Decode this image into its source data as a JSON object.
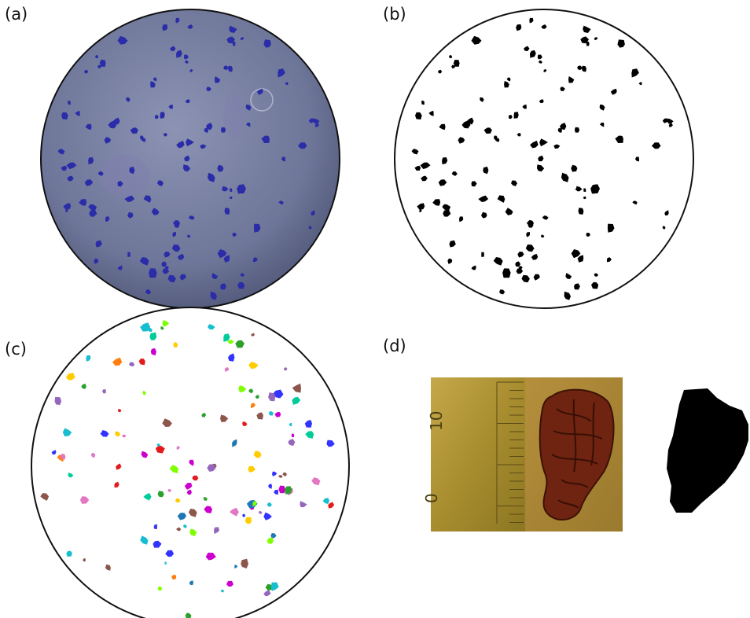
{
  "panels": [
    {
      "label": "(a)",
      "kind": "stained-dish-photo"
    },
    {
      "label": "(b)",
      "kind": "binary-threshold"
    },
    {
      "label": "(c)",
      "kind": "colored-labels"
    },
    {
      "label": "(d)",
      "kind": "single-colony-and-mask"
    }
  ],
  "ruler_text": "0  10",
  "colors": {
    "dish_blue": "#6d7597",
    "colony_blue": "#2a2ca8",
    "colony_black": "#000000",
    "ruler_bg": "#b79a3a",
    "colony_red": "#7a2a12"
  }
}
